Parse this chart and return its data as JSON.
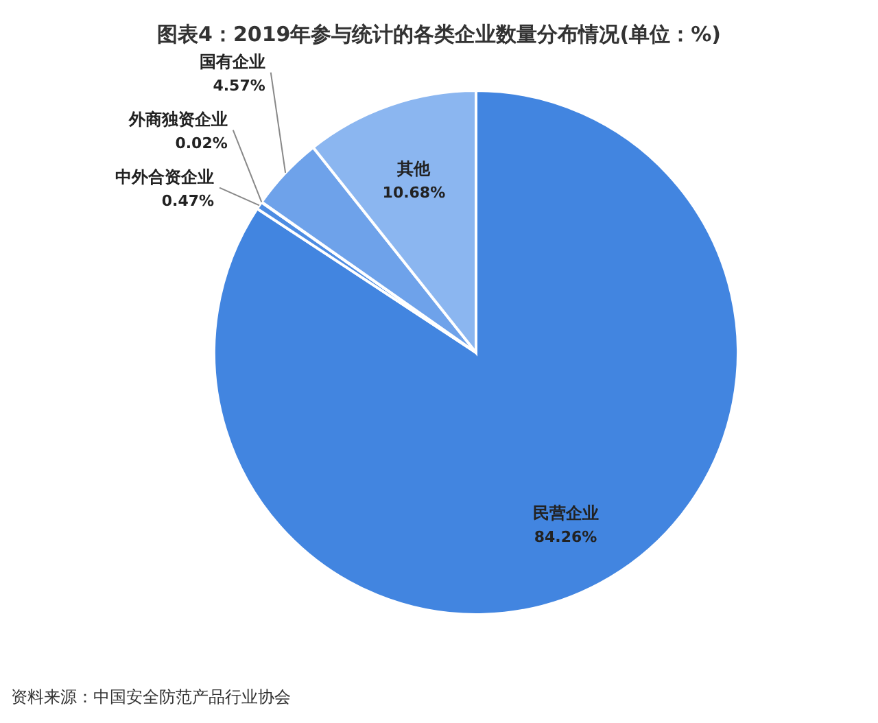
{
  "chart_data": {
    "type": "pie",
    "title": "图表4：2019年参与统计的各类企业数量分布情况(单位：%)",
    "categories": [
      "民营企业",
      "中外合资企业",
      "外商独资企业",
      "国有企业",
      "其他"
    ],
    "values": [
      84.26,
      0.47,
      0.02,
      4.57,
      10.68
    ],
    "colors": [
      "#4285e0",
      "#4d8ce2",
      "#5b95e6",
      "#6ea2ea",
      "#8bb6f0"
    ],
    "value_labels": [
      "84.26%",
      "0.47%",
      "0.02%",
      "4.57%",
      "10.68%"
    ],
    "legend": false,
    "annotations": [
      "资料来源：中国安全防范产品行业协会"
    ]
  }
}
